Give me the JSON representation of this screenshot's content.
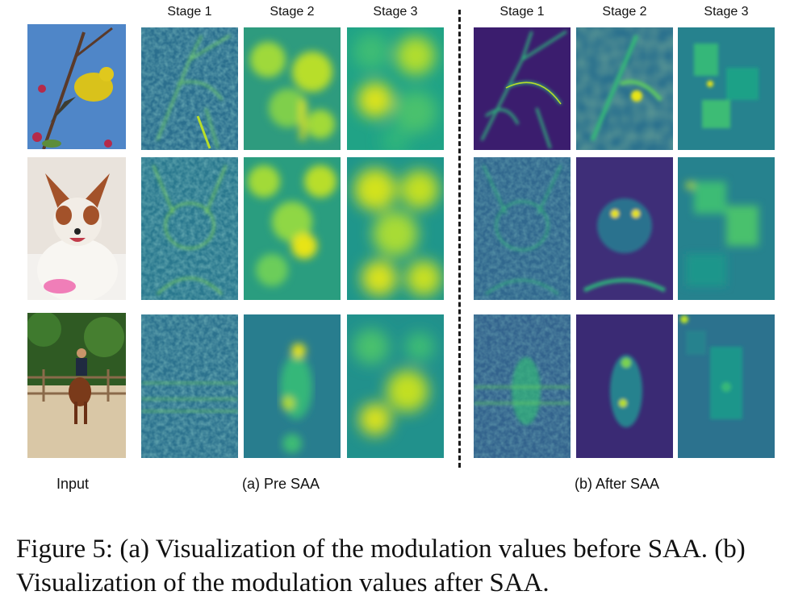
{
  "column_headers": {
    "pre": [
      "Stage 1",
      "Stage 2",
      "Stage 3"
    ],
    "after": [
      "Stage 1",
      "Stage 2",
      "Stage 3"
    ]
  },
  "labels": {
    "input": "Input",
    "pre_saa": "(a) Pre SAA",
    "after_saa": "(b) After SAA"
  },
  "caption": "Figure 5: (a) Visualization of the modulation values before SAA. (b) Visualization of the modulation values after SAA.",
  "rows": [
    {
      "subject": "bird",
      "input_icon": "bird-photo-icon"
    },
    {
      "subject": "dog",
      "input_icon": "dog-photo-icon"
    },
    {
      "subject": "horse-rider",
      "input_icon": "horse-rider-photo-icon"
    }
  ],
  "colors": {
    "viridis_low": "#3b1d6e",
    "viridis_mid": "#238a8d",
    "viridis_high": "#e8e419"
  }
}
